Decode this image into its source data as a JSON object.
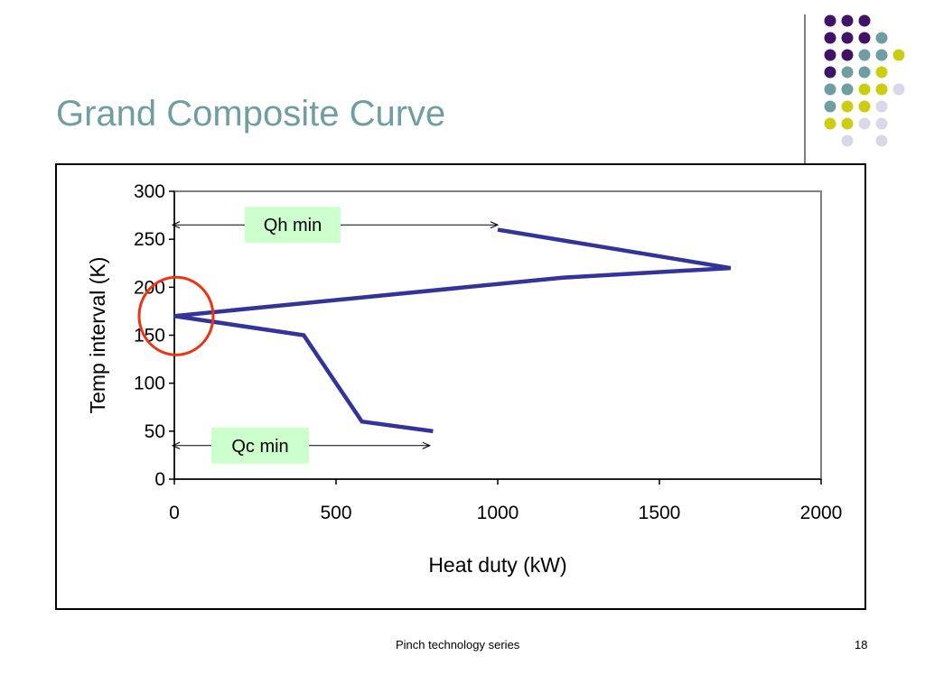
{
  "slide": {
    "title": "Grand Composite Curve",
    "footer": "Pinch technology series",
    "page_number": "18"
  },
  "colors": {
    "title": "#6f9ea0",
    "curve": "#333399",
    "annotation_fill": "#ccffcc",
    "pinch_circle": "#ee3311",
    "dots": [
      "#3f1366",
      "#6f9ea0",
      "#cccc11",
      "#d8d8e8"
    ]
  },
  "chart_data": {
    "type": "line",
    "title": "",
    "xlabel": "Heat duty (kW)",
    "ylabel": "Temp interval (K)",
    "xlim": [
      0,
      2000
    ],
    "ylim": [
      0,
      300
    ],
    "xticks": [
      0,
      500,
      1000,
      1500,
      2000
    ],
    "yticks": [
      0,
      50,
      100,
      150,
      200,
      250,
      300
    ],
    "grid": false,
    "series": [
      {
        "x": [
          1000,
          1720,
          1200,
          0,
          400,
          580,
          800
        ],
        "y": [
          260,
          220,
          210,
          170,
          150,
          60,
          50
        ]
      }
    ],
    "annotations": [
      {
        "text": "Qh min",
        "arrow_from": 0,
        "arrow_to": 1000,
        "y": 265
      },
      {
        "text": "Qc min",
        "arrow_from": 0,
        "arrow_to": 790,
        "y": 35
      }
    ],
    "pinch_marker": {
      "x": 0,
      "y": 170,
      "shape": "circle"
    }
  }
}
